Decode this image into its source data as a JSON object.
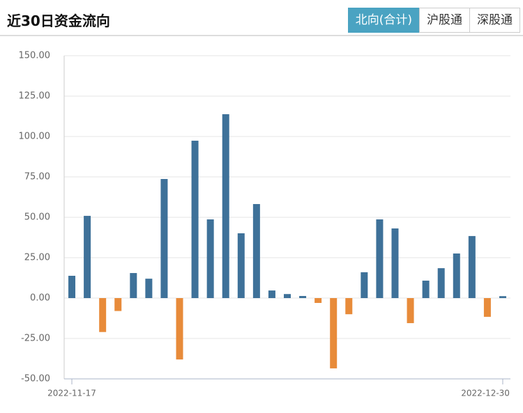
{
  "header": {
    "title": "近30日资金流向",
    "tabs": [
      "北向(合计)",
      "沪股通",
      "深股通"
    ],
    "active_tab": 0
  },
  "chart_data": {
    "type": "bar",
    "categories": [
      "2022-11-17",
      null,
      null,
      null,
      null,
      null,
      null,
      null,
      null,
      null,
      null,
      null,
      null,
      null,
      null,
      null,
      null,
      null,
      null,
      null,
      null,
      null,
      null,
      null,
      null,
      null,
      null,
      null,
      "2022-12-30"
    ],
    "values": [
      13.8,
      50.9,
      -21,
      -8,
      15.5,
      12,
      73.7,
      -38,
      97.4,
      48.7,
      113.8,
      40.1,
      58.2,
      4.7,
      2.5,
      1.3,
      -3,
      -43.5,
      -10,
      16,
      48.7,
      43.1,
      -15.5,
      10.8,
      18.5,
      27.6,
      38.4,
      -11.6,
      1.2
    ],
    "positive_color": "#3e7199",
    "negative_color": "#e88b3a",
    "ylim": [
      -50,
      150
    ],
    "yticks": [
      {
        "value": -50,
        "label": "-50.00"
      },
      {
        "value": -25,
        "label": "-25.00"
      },
      {
        "value": 0,
        "label": "0.00"
      },
      {
        "value": 25,
        "label": "25.00"
      },
      {
        "value": 50,
        "label": "50.00"
      },
      {
        "value": 75,
        "label": "75.00"
      },
      {
        "value": 100,
        "label": "100.00"
      },
      {
        "value": 125,
        "label": "125.00"
      },
      {
        "value": 150,
        "label": "150.00"
      }
    ],
    "grid": true
  }
}
